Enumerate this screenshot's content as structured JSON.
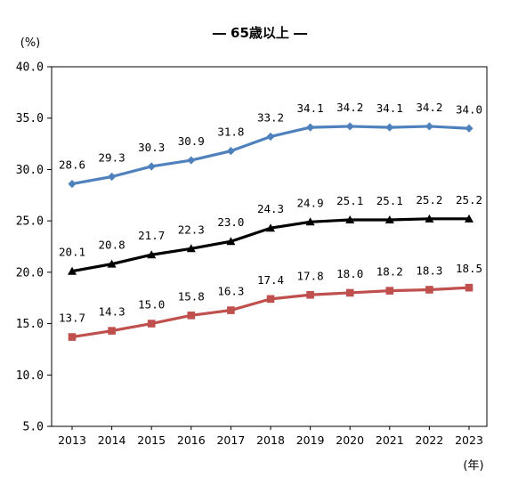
{
  "chart_data": {
    "type": "line",
    "title": "― 65歳以上 ―",
    "ylabel": "(%)",
    "xlabel": "(年)",
    "ylim": [
      5,
      40
    ],
    "yticks": [
      "5.0",
      "10.0",
      "15.0",
      "20.0",
      "25.0",
      "30.0",
      "35.0",
      "40.0"
    ],
    "x": [
      "2013",
      "2014",
      "2015",
      "2016",
      "2017",
      "2018",
      "2019",
      "2020",
      "2021",
      "2022",
      "2023"
    ],
    "grid": false,
    "series": [
      {
        "color": "#4f81bd",
        "marker": "diamond",
        "values": [
          28.6,
          29.3,
          30.3,
          30.9,
          31.8,
          33.2,
          34.1,
          34.2,
          34.1,
          34.2,
          34.0
        ],
        "labels": [
          "28.6",
          "29.3",
          "30.3",
          "30.9",
          "31.8",
          "33.2",
          "34.1",
          "34.2",
          "34.1",
          "34.2",
          "34.0"
        ]
      },
      {
        "color": "#000000",
        "marker": "triangle",
        "values": [
          20.1,
          20.8,
          21.7,
          22.3,
          23.0,
          24.3,
          24.9,
          25.1,
          25.1,
          25.2,
          25.2
        ],
        "labels": [
          "20.1",
          "20.8",
          "21.7",
          "22.3",
          "23.0",
          "24.3",
          "24.9",
          "25.1",
          "25.1",
          "25.2",
          "25.2"
        ]
      },
      {
        "color": "#c0504d",
        "marker": "square",
        "values": [
          13.7,
          14.3,
          15.0,
          15.8,
          16.3,
          17.4,
          17.8,
          18.0,
          18.2,
          18.3,
          18.5
        ],
        "labels": [
          "13.7",
          "14.3",
          "15.0",
          "15.8",
          "16.3",
          "17.4",
          "17.8",
          "18.0",
          "18.2",
          "18.3",
          "18.5"
        ]
      }
    ]
  }
}
